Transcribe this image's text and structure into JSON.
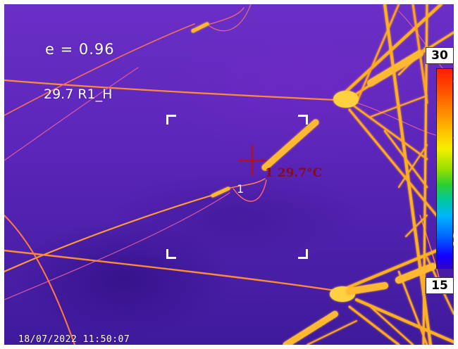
{
  "overlay": {
    "emissivity": "e = 0.96",
    "region_reading": "29.7 R1_H",
    "spot_number": "1",
    "spot_temperature": "1 29.7°C",
    "timestamp": "18/07/2022 11:50:07"
  },
  "scale": {
    "max_label": "30",
    "min_label": "15",
    "colors": {
      "hot": "#ff1e00",
      "warm": "#ffc400",
      "mid": "#2fcf2f",
      "cool": "#00b4ff",
      "cold": "#1400ff",
      "background_scene": "#5a25b8",
      "hot_object": "#ffb000"
    }
  }
}
